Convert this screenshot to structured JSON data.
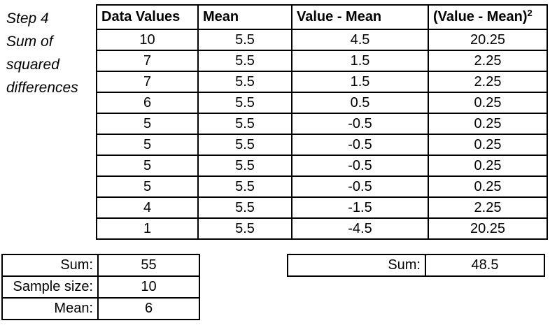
{
  "annotation": {
    "lines": [
      "Step 4",
      "Sum of",
      "squared",
      "differences"
    ]
  },
  "main_table": {
    "headers": {
      "data_values": "Data Values",
      "mean": "Mean",
      "diff": "Value - Mean",
      "sq_base": "(Value - Mean)",
      "sq_sup": "2"
    },
    "rows": [
      {
        "data_value": "10",
        "mean": "5.5",
        "diff": "4.5",
        "sq": "20.25"
      },
      {
        "data_value": "7",
        "mean": "5.5",
        "diff": "1.5",
        "sq": "2.25"
      },
      {
        "data_value": "7",
        "mean": "5.5",
        "diff": "1.5",
        "sq": "2.25"
      },
      {
        "data_value": "6",
        "mean": "5.5",
        "diff": "0.5",
        "sq": "0.25"
      },
      {
        "data_value": "5",
        "mean": "5.5",
        "diff": "-0.5",
        "sq": "0.25"
      },
      {
        "data_value": "5",
        "mean": "5.5",
        "diff": "-0.5",
        "sq": "0.25"
      },
      {
        "data_value": "5",
        "mean": "5.5",
        "diff": "-0.5",
        "sq": "0.25"
      },
      {
        "data_value": "5",
        "mean": "5.5",
        "diff": "-0.5",
        "sq": "0.25"
      },
      {
        "data_value": "4",
        "mean": "5.5",
        "diff": "-1.5",
        "sq": "2.25"
      },
      {
        "data_value": "1",
        "mean": "5.5",
        "diff": "-4.5",
        "sq": "20.25"
      }
    ]
  },
  "summary_left": {
    "rows": [
      {
        "label": "Sum:",
        "value": "55"
      },
      {
        "label": "Sample size:",
        "value": "10"
      },
      {
        "label": "Mean:",
        "value": "6"
      }
    ]
  },
  "summary_right": {
    "label": "Sum:",
    "value": "48.5"
  },
  "colors": {
    "text": "#000000",
    "border": "#000000",
    "background": "#ffffff"
  }
}
